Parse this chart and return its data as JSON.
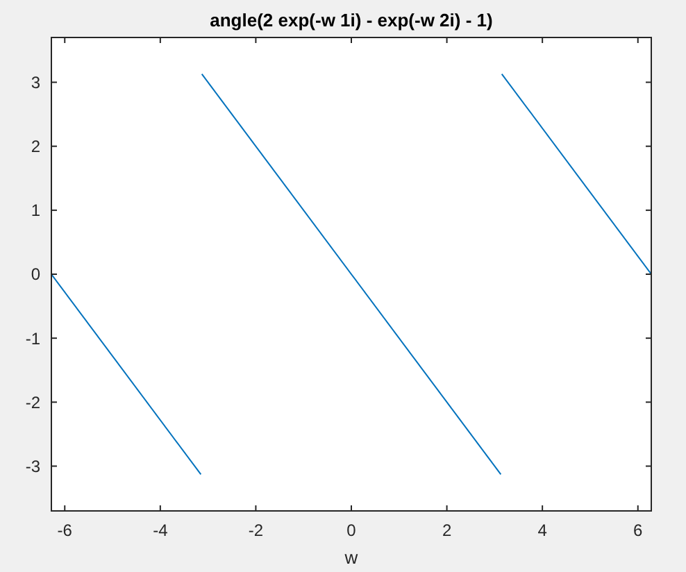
{
  "chart_data": {
    "type": "line",
    "title": "angle(2 exp(-w 1i) - exp(-w 2i) - 1)",
    "xlabel": "w",
    "xlim": [
      -6.28,
      6.28
    ],
    "ylim": [
      -3.7,
      3.7
    ],
    "xticks": [
      -6,
      -4,
      -2,
      0,
      2,
      4,
      6
    ],
    "yticks": [
      -3,
      -2,
      -1,
      0,
      1,
      2,
      3
    ],
    "grid": false,
    "series": [
      {
        "color": "#0072bd",
        "x": [
          -6.28,
          -3.15
        ],
        "values": [
          0,
          -3.13
        ]
      },
      {
        "color": "#0072bd",
        "x": [
          -3.13,
          3.13
        ],
        "values": [
          3.13,
          -3.13
        ]
      },
      {
        "color": "#0072bd",
        "x": [
          3.15,
          6.28
        ],
        "values": [
          3.13,
          0
        ]
      }
    ]
  }
}
